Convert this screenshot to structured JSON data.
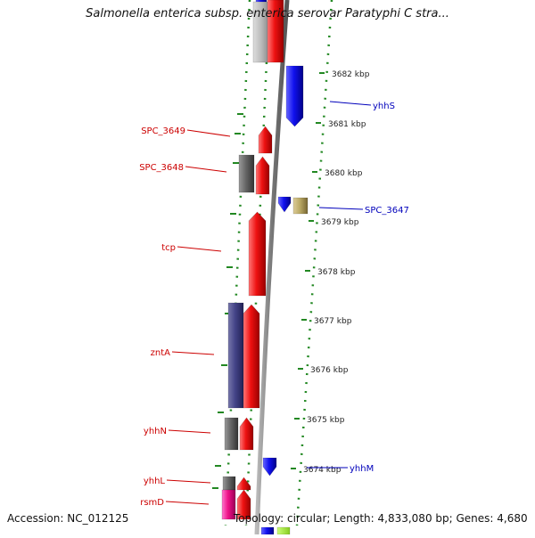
{
  "title": "Salmonella enterica subsp. enterica serovar Paratyphi C stra...",
  "accession": "Accession: NC_012125",
  "topology": "Topology: circular; Length: 4,833,080 bp; Genes: 4,680",
  "scale_ticks": [
    "3682 kbp",
    "3681 kbp",
    "3680 kbp",
    "3679 kbp",
    "3678 kbp",
    "3677 kbp",
    "3676 kbp",
    "3675 kbp",
    "3674 kbp"
  ],
  "left_labels": [
    "SPC_3649",
    "SPC_3648",
    "tcp",
    "zntA",
    "yhhN",
    "yhhL",
    "rsmD"
  ],
  "right_labels": [
    "yhhS",
    "SPC_3647",
    "yhhM"
  ],
  "colors": {
    "left_label": "#cc0000",
    "right_label": "#0000bb",
    "gene_red": "#ee1111",
    "gene_blue": "#1111ee",
    "gene_gray": "#666666",
    "gene_purple": "#444488",
    "gene_pink": "#ee1188",
    "gene_khaki": "#bbaa66",
    "dotted_line": "#228822"
  }
}
